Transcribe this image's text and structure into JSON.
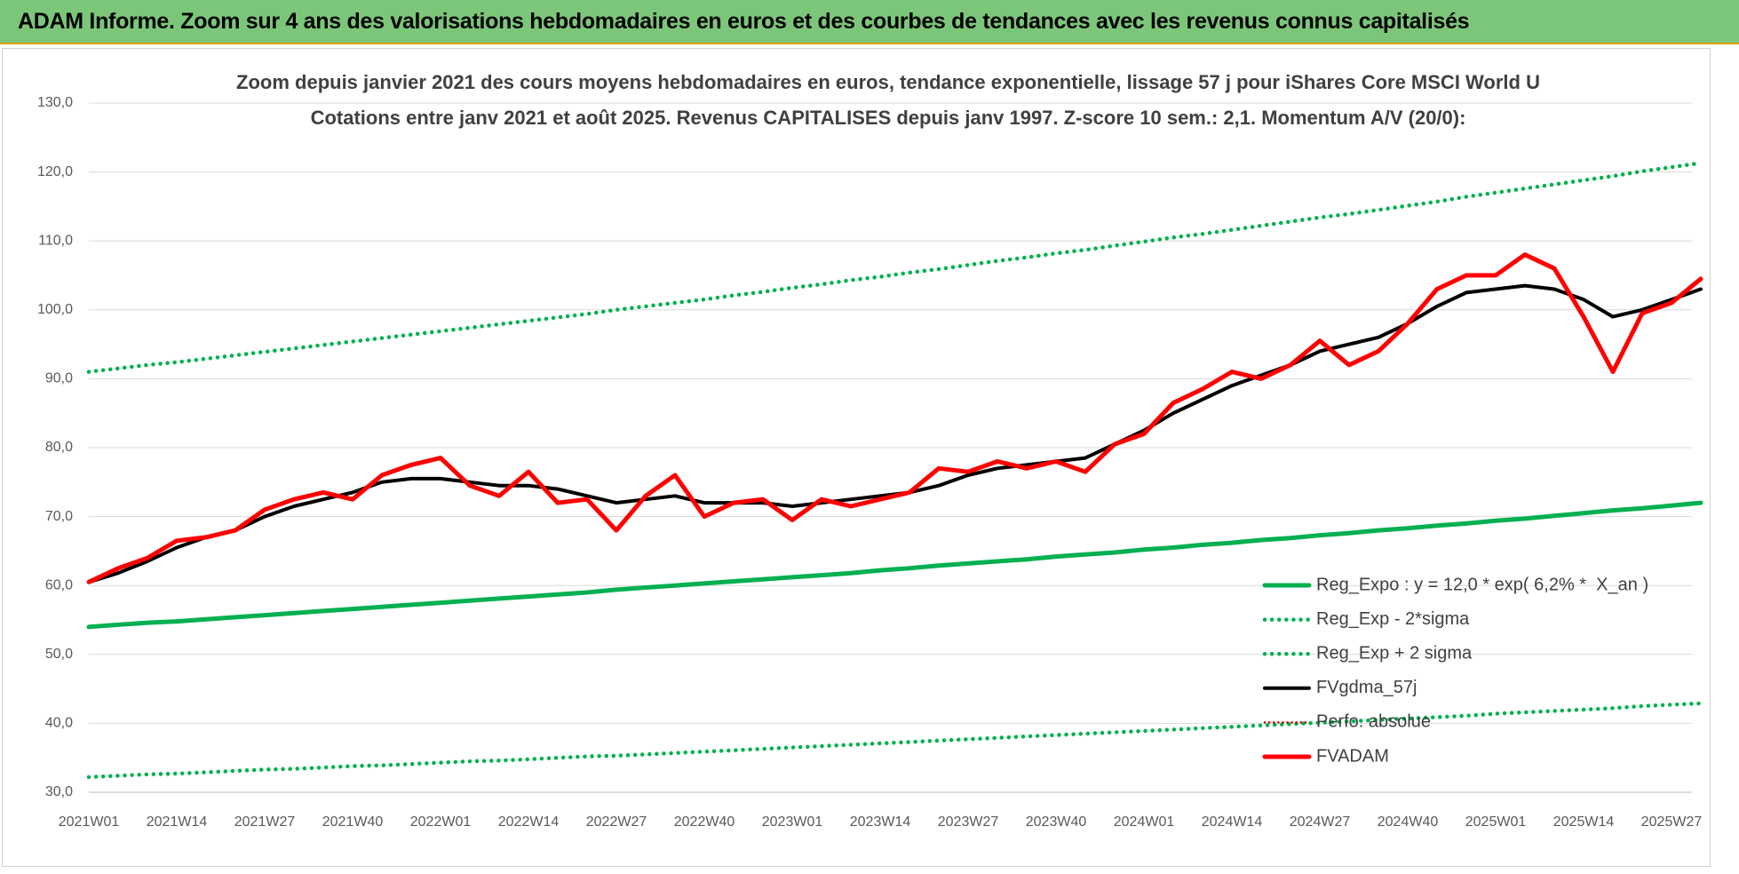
{
  "header": {
    "title": "ADAM Informe. Zoom sur 4 ans des valorisations hebdomadaires en euros et des courbes de tendances avec les revenus connus capitalisés"
  },
  "chart_data": {
    "type": "line",
    "title": "Zoom depuis janvier 2021 des cours moyens hebdomadaires en euros, tendance exponentielle, lissage 57 j pour iShares Core MSCI World U",
    "subtitle": "Cotations entre janv 2021 et août 2025. Revenus CAPITALISES depuis janv 1997. Z-score 10 sem.: 2,1. Momentum A/V (20/0):",
    "categories": [
      "2021W01",
      null,
      null,
      "2021W14",
      null,
      null,
      "2021W27",
      null,
      null,
      "2021W40",
      null,
      null,
      "2022W01",
      null,
      null,
      "2022W14",
      null,
      null,
      "2022W27",
      null,
      null,
      "2022W40",
      null,
      null,
      "2023W01",
      null,
      null,
      "2023W14",
      null,
      null,
      "2023W27",
      null,
      null,
      "2023W40",
      null,
      null,
      "2024W01",
      null,
      null,
      "2024W14",
      null,
      null,
      "2024W27",
      null,
      null,
      "2024W40",
      null,
      null,
      "2025W01",
      null,
      null,
      "2025W14",
      null,
      null,
      "2025W27",
      null
    ],
    "ylim": [
      30,
      130
    ],
    "yticks": [
      {
        "value": 30,
        "label": "30,0"
      },
      {
        "value": 40,
        "label": "40,0"
      },
      {
        "value": 50,
        "label": "50,0"
      },
      {
        "value": 60,
        "label": "60,0"
      },
      {
        "value": 70,
        "label": "70,0"
      },
      {
        "value": 80,
        "label": "80,0"
      },
      {
        "value": 90,
        "label": "90,0"
      },
      {
        "value": 100,
        "label": "100,0"
      },
      {
        "value": 110,
        "label": "110,0"
      },
      {
        "value": 120,
        "label": "120,0"
      },
      {
        "value": 130,
        "label": "130,0"
      }
    ],
    "grid": true,
    "legend": "bottom-right",
    "series": [
      {
        "name": "Reg_Expo : y = 12,0 * exp( 6,2% *  X_an )",
        "color": "#00b050",
        "line_style": "solid",
        "values": [
          54.0,
          54.3,
          54.6,
          54.8,
          55.1,
          55.4,
          55.7,
          56.0,
          56.3,
          56.6,
          56.9,
          57.2,
          57.5,
          57.8,
          58.1,
          58.4,
          58.7,
          59.0,
          59.4,
          59.7,
          60.0,
          60.3,
          60.6,
          60.9,
          61.2,
          61.5,
          61.8,
          62.2,
          62.5,
          62.9,
          63.2,
          63.5,
          63.8,
          64.2,
          64.5,
          64.8,
          65.2,
          65.5,
          65.9,
          66.2,
          66.6,
          66.9,
          67.3,
          67.6,
          68.0,
          68.3,
          68.7,
          69.0,
          69.4,
          69.7,
          70.1,
          70.5,
          70.9,
          71.2,
          71.6,
          72.0
        ]
      },
      {
        "name": "Reg_Exp - 2*sigma",
        "color": "#00b050",
        "line_style": "dotted",
        "values": [
          32.2,
          32.4,
          32.6,
          32.7,
          32.9,
          33.1,
          33.3,
          33.4,
          33.6,
          33.8,
          33.9,
          34.1,
          34.3,
          34.5,
          34.6,
          34.8,
          35.0,
          35.2,
          35.3,
          35.5,
          35.7,
          35.9,
          36.1,
          36.3,
          36.5,
          36.7,
          36.9,
          37.1,
          37.3,
          37.5,
          37.7,
          37.9,
          38.1,
          38.3,
          38.5,
          38.7,
          38.9,
          39.1,
          39.3,
          39.5,
          39.7,
          39.9,
          40.1,
          40.3,
          40.5,
          40.7,
          40.9,
          41.1,
          41.4,
          41.6,
          41.8,
          42.0,
          42.2,
          42.5,
          42.7,
          42.9
        ]
      },
      {
        "name": "Reg_Exp + 2 sigma",
        "color": "#00b050",
        "line_style": "dotted",
        "values": [
          91.0,
          91.5,
          92.0,
          92.4,
          92.9,
          93.4,
          93.9,
          94.4,
          94.9,
          95.4,
          95.9,
          96.4,
          96.9,
          97.4,
          97.9,
          98.4,
          98.9,
          99.4,
          100.0,
          100.5,
          101.0,
          101.5,
          102.1,
          102.6,
          103.2,
          103.7,
          104.3,
          104.8,
          105.4,
          105.9,
          106.5,
          107.1,
          107.6,
          108.2,
          108.7,
          109.3,
          109.9,
          110.5,
          111.0,
          111.6,
          112.2,
          112.8,
          113.4,
          113.9,
          114.5,
          115.1,
          115.7,
          116.4,
          117.0,
          117.6,
          118.2,
          118.8,
          119.4,
          120.1,
          120.7,
          121.3
        ]
      },
      {
        "name": "FVgdma_57j",
        "color": "#000000",
        "line_style": "solid",
        "values": [
          60.5,
          61.8,
          63.5,
          65.5,
          67,
          68,
          70,
          71.5,
          72.5,
          73.5,
          75,
          75.5,
          75.5,
          75,
          74.5,
          74.5,
          74,
          73,
          72,
          72.5,
          73,
          72,
          72,
          72,
          71.5,
          72,
          72.5,
          73,
          73.5,
          74.5,
          76,
          77,
          77.5,
          78,
          78.5,
          80.5,
          82.5,
          85,
          87,
          89,
          90.5,
          92,
          94,
          95,
          96,
          98,
          100.5,
          102.5,
          103,
          103.5,
          103,
          101.5,
          99,
          100,
          101.5,
          103
        ]
      },
      {
        "name": "Perfo. absolue",
        "color": "#c00000",
        "line_style": "dotted",
        "values": [
          null,
          null,
          null,
          null,
          null,
          null,
          null,
          null,
          null,
          null,
          null,
          null,
          null,
          null,
          null,
          null,
          null,
          null,
          null,
          null,
          null,
          null,
          null,
          null,
          null,
          null,
          null,
          null,
          null,
          null,
          null,
          null,
          null,
          null,
          null,
          null,
          null,
          null,
          null,
          null,
          null,
          null,
          null,
          null,
          null,
          null,
          null,
          null,
          null,
          null,
          null,
          null,
          null,
          null,
          null,
          null
        ]
      },
      {
        "name": "FVADAM",
        "color": "#ff0000",
        "line_style": "solid",
        "values": [
          60.5,
          62.5,
          64,
          66.5,
          67,
          68,
          71,
          72.5,
          73.5,
          72.5,
          76,
          77.5,
          78.5,
          74.5,
          73,
          76.5,
          72,
          72.5,
          68,
          73,
          76,
          70,
          72,
          72.5,
          69.5,
          72.5,
          71.5,
          72.5,
          73.5,
          77,
          76.5,
          78,
          77,
          78,
          76.5,
          80.5,
          82,
          86.5,
          88.5,
          91,
          90,
          92,
          95.5,
          92,
          94,
          98,
          103,
          105,
          105,
          108,
          106,
          99,
          91,
          99.5,
          101,
          104.5
        ]
      }
    ]
  }
}
